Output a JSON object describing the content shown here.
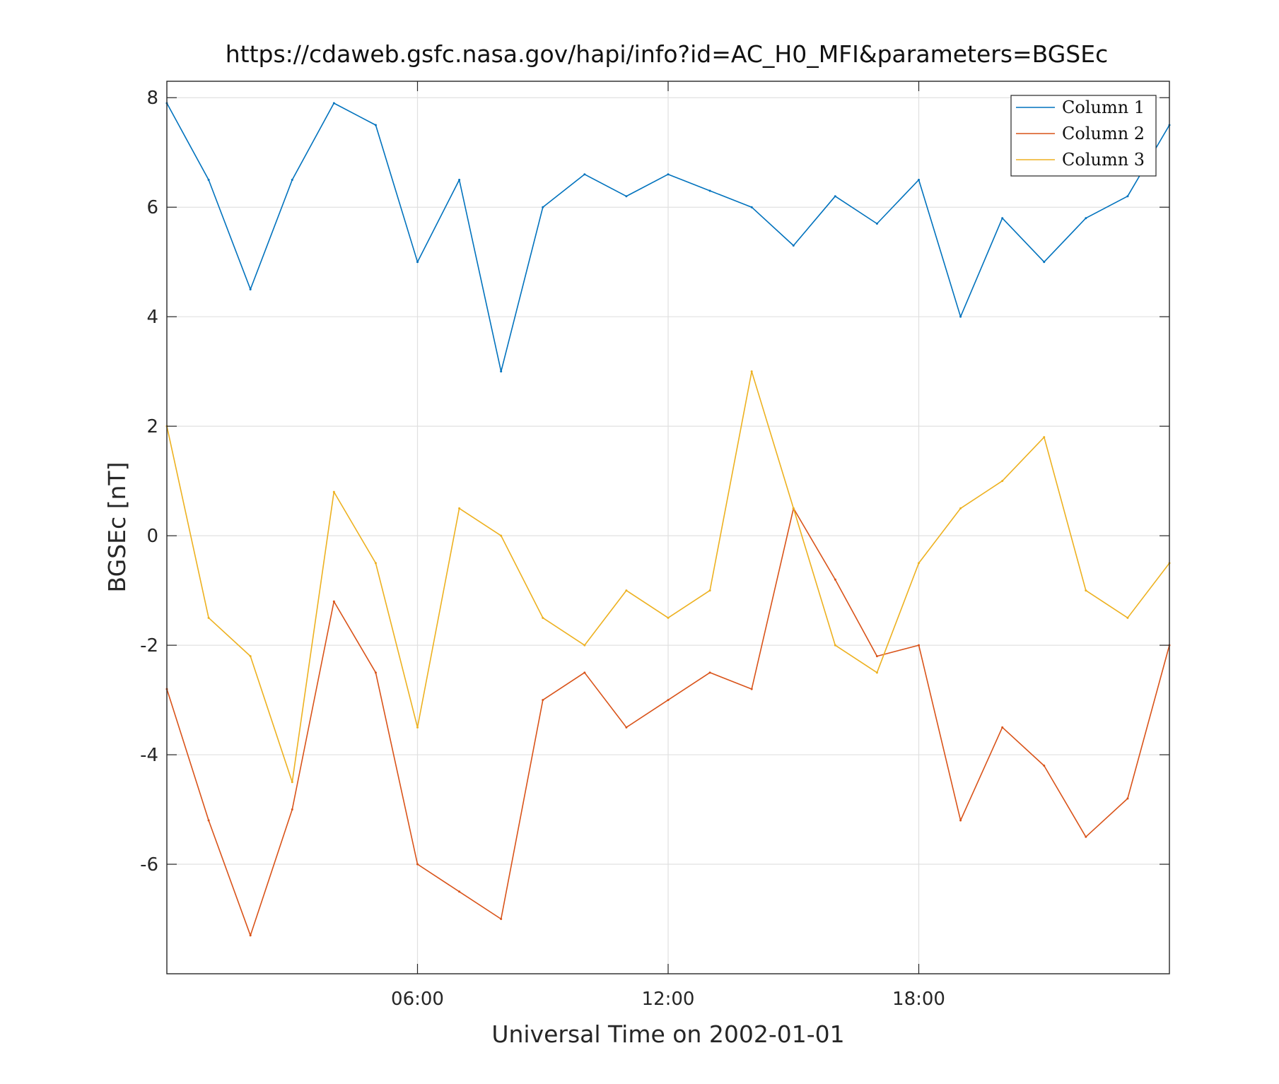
{
  "chart_data": {
    "type": "line",
    "title": "https://cdaweb.gsfc.nasa.gov/hapi/info?id=AC_H0_MFI&parameters=BGSEc",
    "xlabel": "Universal Time on 2002-01-01",
    "ylabel": "BGSEc [nT]",
    "xlim": [
      "2002-01-01T00:00",
      "2002-01-02T00:00"
    ],
    "ylim": [
      -8,
      8.3
    ],
    "x_ticks": [
      "06:00",
      "12:00",
      "18:00"
    ],
    "y_ticks": [
      8,
      6,
      4,
      2,
      0,
      -2,
      -4,
      -6
    ],
    "y_tick_labels": [
      "8",
      "6",
      "4",
      "2",
      "0",
      "-2",
      "-4",
      "-6"
    ],
    "grid": true,
    "legend_position": "top-right",
    "x": [
      "00:00",
      "01:00",
      "02:00",
      "03:00",
      "04:00",
      "05:00",
      "06:00",
      "07:00",
      "08:00",
      "09:00",
      "10:00",
      "11:00",
      "12:00",
      "13:00",
      "14:00",
      "15:00",
      "16:00",
      "17:00",
      "18:00",
      "19:00",
      "20:00",
      "21:00",
      "22:00",
      "23:00",
      "24:00"
    ],
    "series": [
      {
        "name": "Column 1",
        "color": "#0072BD",
        "values": [
          7.9,
          6.5,
          4.5,
          6.5,
          7.9,
          7.5,
          5.0,
          6.5,
          3.0,
          6.0,
          6.6,
          6.2,
          6.6,
          6.3,
          6.0,
          5.3,
          6.2,
          5.7,
          6.5,
          4.0,
          5.8,
          5.0,
          5.8,
          6.2,
          7.5
        ]
      },
      {
        "name": "Column 2",
        "color": "#D95319",
        "values": [
          -2.8,
          -5.2,
          -7.3,
          -5.0,
          -1.2,
          -2.5,
          -6.0,
          -6.5,
          -7.0,
          -3.0,
          -2.5,
          -3.5,
          -3.0,
          -2.5,
          -2.8,
          0.5,
          -0.8,
          -2.2,
          -2.0,
          -5.2,
          -3.5,
          -4.2,
          -5.5,
          -4.8,
          -2.0
        ]
      },
      {
        "name": "Column 3",
        "color": "#EDB120",
        "values": [
          2.0,
          -1.5,
          -2.2,
          -4.5,
          0.8,
          -0.5,
          -3.5,
          0.5,
          0.0,
          -1.5,
          -2.0,
          -1.0,
          -1.5,
          -1.0,
          3.0,
          0.5,
          -2.0,
          -2.5,
          -0.5,
          0.5,
          1.0,
          1.8,
          -1.0,
          -1.5,
          -0.5
        ]
      }
    ]
  }
}
